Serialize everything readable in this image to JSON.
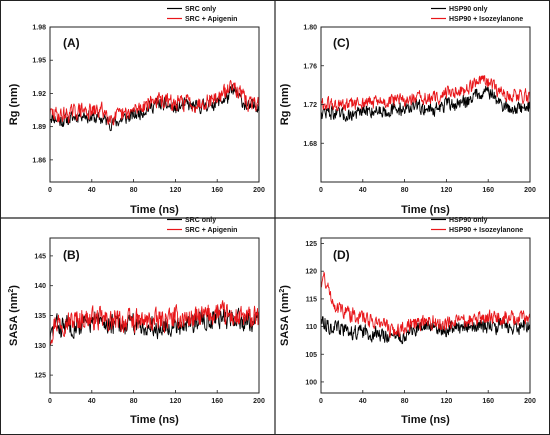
{
  "colors": {
    "series_a": "#000000",
    "series_b": "#e8161a",
    "frame": "#222222"
  },
  "chart_data": [
    {
      "type": "line",
      "panel_label": "(A)",
      "xlabel": "Time (ns)",
      "ylabel": "Rg (nm)",
      "ylabel_super": "",
      "ylabel_suffix": "",
      "xlim": [
        0,
        200
      ],
      "ylim": [
        1.84,
        1.98
      ],
      "xticks": [
        0,
        40,
        80,
        120,
        160,
        200
      ],
      "yticks": [
        1.86,
        1.89,
        1.92,
        1.95,
        1.98
      ],
      "ytick_labels": [
        "1.86",
        "1.89",
        "1.92",
        "1.95",
        "1.98"
      ],
      "legend_position": "top-right",
      "series": [
        {
          "name": "SRC only",
          "color": "#000000",
          "noise": 0.0055,
          "seed": 11,
          "x": [
            0,
            10,
            20,
            30,
            40,
            50,
            60,
            70,
            80,
            90,
            100,
            110,
            120,
            130,
            140,
            150,
            160,
            170,
            175,
            180,
            190,
            200
          ],
          "y": [
            1.9,
            1.895,
            1.897,
            1.902,
            1.898,
            1.897,
            1.893,
            1.897,
            1.9,
            1.905,
            1.91,
            1.91,
            1.906,
            1.91,
            1.907,
            1.91,
            1.912,
            1.916,
            1.923,
            1.917,
            1.907,
            1.91
          ]
        },
        {
          "name": "SRC + Apigenin",
          "color": "#e8161a",
          "noise": 0.0065,
          "seed": 29,
          "x": [
            0,
            10,
            20,
            30,
            40,
            50,
            60,
            70,
            80,
            90,
            100,
            110,
            120,
            130,
            140,
            150,
            160,
            170,
            175,
            180,
            190,
            200
          ],
          "y": [
            1.902,
            1.9,
            1.902,
            1.905,
            1.903,
            1.905,
            1.898,
            1.9,
            1.904,
            1.91,
            1.914,
            1.913,
            1.91,
            1.913,
            1.91,
            1.914,
            1.916,
            1.922,
            1.932,
            1.922,
            1.91,
            1.912
          ]
        }
      ]
    },
    {
      "type": "line",
      "panel_label": "(C)",
      "xlabel": "Time (ns)",
      "ylabel": "Rg (nm)",
      "ylabel_super": "",
      "ylabel_suffix": "",
      "xlim": [
        0,
        200
      ],
      "ylim": [
        1.64,
        1.8
      ],
      "xticks": [
        0,
        40,
        80,
        120,
        160,
        200
      ],
      "yticks": [
        1.68,
        1.72,
        1.76,
        1.8
      ],
      "ytick_labels": [
        "1.68",
        "1.72",
        "1.76",
        "1.80"
      ],
      "legend_position": "top-right",
      "series": [
        {
          "name": "HSP90 only",
          "color": "#000000",
          "noise": 0.0065,
          "seed": 47,
          "x": [
            0,
            10,
            20,
            30,
            40,
            50,
            60,
            70,
            80,
            90,
            100,
            110,
            120,
            130,
            140,
            150,
            160,
            170,
            180,
            190,
            200
          ],
          "y": [
            1.712,
            1.712,
            1.708,
            1.71,
            1.712,
            1.714,
            1.714,
            1.714,
            1.716,
            1.718,
            1.716,
            1.715,
            1.72,
            1.72,
            1.724,
            1.732,
            1.735,
            1.722,
            1.716,
            1.716,
            1.718
          ]
        },
        {
          "name": "HSP90 + Isozeylanone",
          "color": "#e8161a",
          "noise": 0.0065,
          "seed": 61,
          "x": [
            0,
            10,
            20,
            30,
            40,
            50,
            60,
            70,
            80,
            90,
            100,
            110,
            120,
            130,
            140,
            150,
            160,
            170,
            180,
            190,
            200
          ],
          "y": [
            1.72,
            1.72,
            1.718,
            1.72,
            1.722,
            1.722,
            1.722,
            1.724,
            1.724,
            1.726,
            1.726,
            1.726,
            1.732,
            1.734,
            1.736,
            1.744,
            1.742,
            1.734,
            1.73,
            1.73,
            1.728
          ]
        }
      ]
    },
    {
      "type": "line",
      "panel_label": "(B)",
      "xlabel": "Time (ns)",
      "ylabel": "SASA (nm",
      "ylabel_super": "2",
      "ylabel_suffix": ")",
      "xlim": [
        0,
        200
      ],
      "ylim": [
        122,
        148
      ],
      "xticks": [
        0,
        40,
        80,
        120,
        160,
        200
      ],
      "yticks": [
        125,
        130,
        135,
        140,
        145
      ],
      "ytick_labels": [
        "125",
        "130",
        "135",
        "140",
        "145"
      ],
      "legend_position": "top-right",
      "series": [
        {
          "name": "SRC only",
          "color": "#000000",
          "noise": 1.6,
          "seed": 83,
          "x": [
            0,
            5,
            10,
            20,
            30,
            40,
            60,
            80,
            100,
            120,
            140,
            160,
            180,
            200
          ],
          "y": [
            131.0,
            133.5,
            133.0,
            133.5,
            133.5,
            134.0,
            133.5,
            133.5,
            133.0,
            133.5,
            134.0,
            135.0,
            134.0,
            134.5
          ]
        },
        {
          "name": "SRC + Apigenin",
          "color": "#e8161a",
          "noise": 1.7,
          "seed": 97,
          "x": [
            0,
            5,
            10,
            20,
            30,
            40,
            60,
            80,
            100,
            120,
            140,
            160,
            180,
            200
          ],
          "y": [
            131.5,
            134.0,
            134.0,
            134.0,
            134.5,
            134.5,
            134.0,
            134.0,
            134.0,
            134.5,
            134.5,
            135.5,
            134.5,
            134.5
          ]
        }
      ]
    },
    {
      "type": "line",
      "panel_label": "(D)",
      "xlabel": "Time (ns)",
      "ylabel": "SASA (nm",
      "ylabel_super": "2",
      "ylabel_suffix": ")",
      "xlim": [
        0,
        200
      ],
      "ylim": [
        98,
        126
      ],
      "xticks": [
        0,
        40,
        80,
        120,
        160,
        200
      ],
      "yticks": [
        100,
        105,
        110,
        115,
        120,
        125
      ],
      "ytick_labels": [
        "100",
        "105",
        "110",
        "115",
        "120",
        "125"
      ],
      "legend_position": "top-right",
      "series": [
        {
          "name": "HSP90 only",
          "color": "#000000",
          "noise": 1.2,
          "seed": 113,
          "x": [
            0,
            5,
            10,
            20,
            30,
            40,
            60,
            70,
            80,
            100,
            120,
            140,
            160,
            180,
            200
          ],
          "y": [
            111.5,
            110.5,
            110.0,
            109.5,
            109.0,
            109.0,
            108.5,
            108.0,
            108.5,
            110.0,
            109.5,
            110.0,
            110.0,
            110.0,
            110.0
          ]
        },
        {
          "name": "HSP90 + Isozeylanone",
          "color": "#e8161a",
          "noise": 1.2,
          "seed": 131,
          "x": [
            0,
            3,
            8,
            15,
            25,
            40,
            60,
            70,
            80,
            100,
            120,
            140,
            160,
            180,
            200
          ],
          "y": [
            118.0,
            119.0,
            116.0,
            113.5,
            112.5,
            111.5,
            110.5,
            109.0,
            110.0,
            111.0,
            110.5,
            111.0,
            111.5,
            111.5,
            111.5
          ]
        }
      ]
    }
  ]
}
